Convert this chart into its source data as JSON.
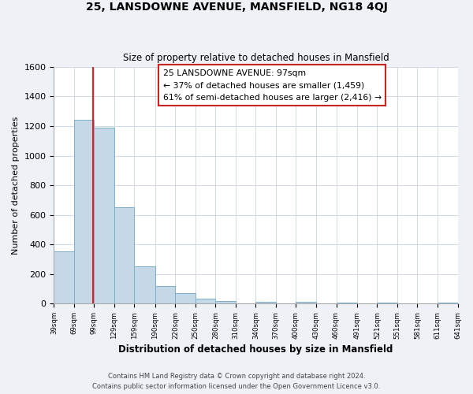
{
  "title": "25, LANSDOWNE AVENUE, MANSFIELD, NG18 4QJ",
  "subtitle": "Size of property relative to detached houses in Mansfield",
  "xlabel": "Distribution of detached houses by size in Mansfield",
  "ylabel": "Number of detached properties",
  "footnote1": "Contains HM Land Registry data © Crown copyright and database right 2024.",
  "footnote2": "Contains public sector information licensed under the Open Government Licence v3.0.",
  "bar_edges": [
    39,
    69,
    99,
    129,
    159,
    190,
    220,
    250,
    280,
    310,
    340,
    370,
    400,
    430,
    460,
    491,
    521,
    551,
    581,
    611,
    641
  ],
  "bar_heights": [
    355,
    1240,
    1190,
    650,
    255,
    120,
    70,
    35,
    20,
    0,
    15,
    0,
    15,
    0,
    10,
    0,
    10,
    0,
    0,
    10
  ],
  "bar_color": "#c5d8e8",
  "bar_edge_color": "#7aafc8",
  "red_line_x": 97,
  "ylim": [
    0,
    1600
  ],
  "yticks": [
    0,
    200,
    400,
    600,
    800,
    1000,
    1200,
    1400,
    1600
  ],
  "annotation_title": "25 LANSDOWNE AVENUE: 97sqm",
  "annotation_line1": "← 37% of detached houses are smaller (1,459)",
  "annotation_line2": "61% of semi-detached houses are larger (2,416) →",
  "bg_color": "#eef2f7",
  "plot_bg_color": "#ffffff",
  "grid_color": "#d0dae6"
}
